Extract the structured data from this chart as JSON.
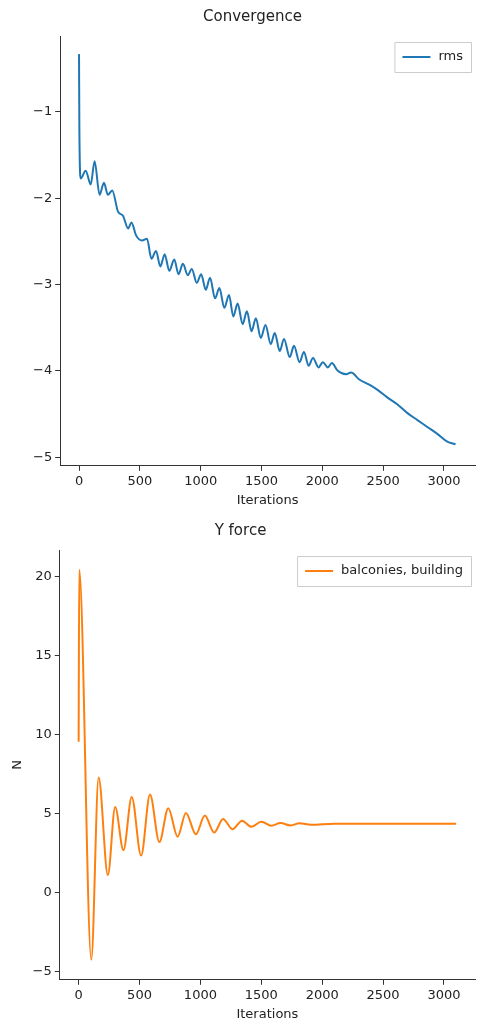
{
  "chart_data": [
    {
      "type": "line",
      "title": "Convergence",
      "xlabel": "Iterations",
      "xlim": [
        -155,
        3255
      ],
      "xticks": [
        0,
        500,
        1000,
        1500,
        2000,
        2500,
        3000
      ],
      "ylim": [
        -5.1,
        -0.12
      ],
      "yticks": [
        -5,
        -4,
        -3,
        -2,
        -1
      ],
      "legend": "top right",
      "series": [
        {
          "name": "rms",
          "color": "#1f77b4",
          "x": [
            0,
            3,
            14,
            55,
            96,
            128,
            169,
            205,
            237,
            273,
            322,
            360,
            404,
            431,
            469,
            518,
            559,
            595,
            633,
            668,
            704,
            742,
            783,
            818,
            854,
            894,
            927,
            968,
            1004,
            1042,
            1077,
            1118,
            1154,
            1194,
            1233,
            1268,
            1304,
            1345,
            1380,
            1418,
            1454,
            1494,
            1533,
            1576,
            1609,
            1650,
            1685,
            1732,
            1767,
            1813,
            1849,
            1887,
            1923,
            1969,
            2004,
            2045,
            2078,
            2127,
            2195,
            2236,
            2304,
            2386,
            2454,
            2536,
            2618,
            2700,
            2782,
            2863,
            2945,
            3027,
            3095
          ],
          "values": [
            -0.33,
            -1.22,
            -1.77,
            -1.68,
            -1.84,
            -1.57,
            -1.96,
            -1.82,
            -1.96,
            -1.91,
            -2.16,
            -2.2,
            -2.35,
            -2.28,
            -2.43,
            -2.49,
            -2.47,
            -2.7,
            -2.61,
            -2.79,
            -2.65,
            -2.84,
            -2.71,
            -2.88,
            -2.76,
            -2.89,
            -2.82,
            -2.98,
            -2.88,
            -3.06,
            -2.92,
            -3.16,
            -3.04,
            -3.27,
            -3.12,
            -3.37,
            -3.22,
            -3.46,
            -3.31,
            -3.54,
            -3.39,
            -3.62,
            -3.47,
            -3.69,
            -3.56,
            -3.77,
            -3.63,
            -3.84,
            -3.71,
            -3.9,
            -3.78,
            -3.94,
            -3.85,
            -3.96,
            -3.9,
            -3.96,
            -3.91,
            -4.0,
            -4.04,
            -4.02,
            -4.1,
            -4.16,
            -4.22,
            -4.31,
            -4.39,
            -4.49,
            -4.57,
            -4.65,
            -4.73,
            -4.82,
            -4.85
          ]
        }
      ]
    },
    {
      "type": "line",
      "title": "Y force",
      "xlabel": "Iterations",
      "ylabel": "N",
      "xlim": [
        -155,
        3255
      ],
      "xticks": [
        0,
        500,
        1000,
        1500,
        2000,
        2500,
        3000
      ],
      "ylim": [
        -5.5,
        21.7
      ],
      "yticks": [
        -5,
        0,
        5,
        10,
        15,
        20
      ],
      "legend": "top right",
      "series": [
        {
          "name": "balconies, building",
          "color": "#ff7f0e",
          "x": [
            0,
            5,
            104,
            164,
            240,
            300,
            368,
            436,
            513,
            586,
            663,
            736,
            813,
            881,
            963,
            1036,
            1113,
            1186,
            1263,
            1342,
            1418,
            1500,
            1582,
            1658,
            1740,
            1813,
            1909,
            2100,
            2500,
            3100
          ],
          "values": [
            9.57,
            20.45,
            -4.23,
            7.3,
            1.13,
            5.43,
            2.7,
            6.07,
            2.36,
            6.22,
            3.22,
            5.36,
            3.56,
            5.06,
            3.71,
            4.89,
            3.82,
            4.68,
            4.03,
            4.57,
            4.18,
            4.51,
            4.25,
            4.42,
            4.27,
            4.4,
            4.31,
            4.38,
            4.38,
            4.38
          ]
        }
      ]
    }
  ]
}
